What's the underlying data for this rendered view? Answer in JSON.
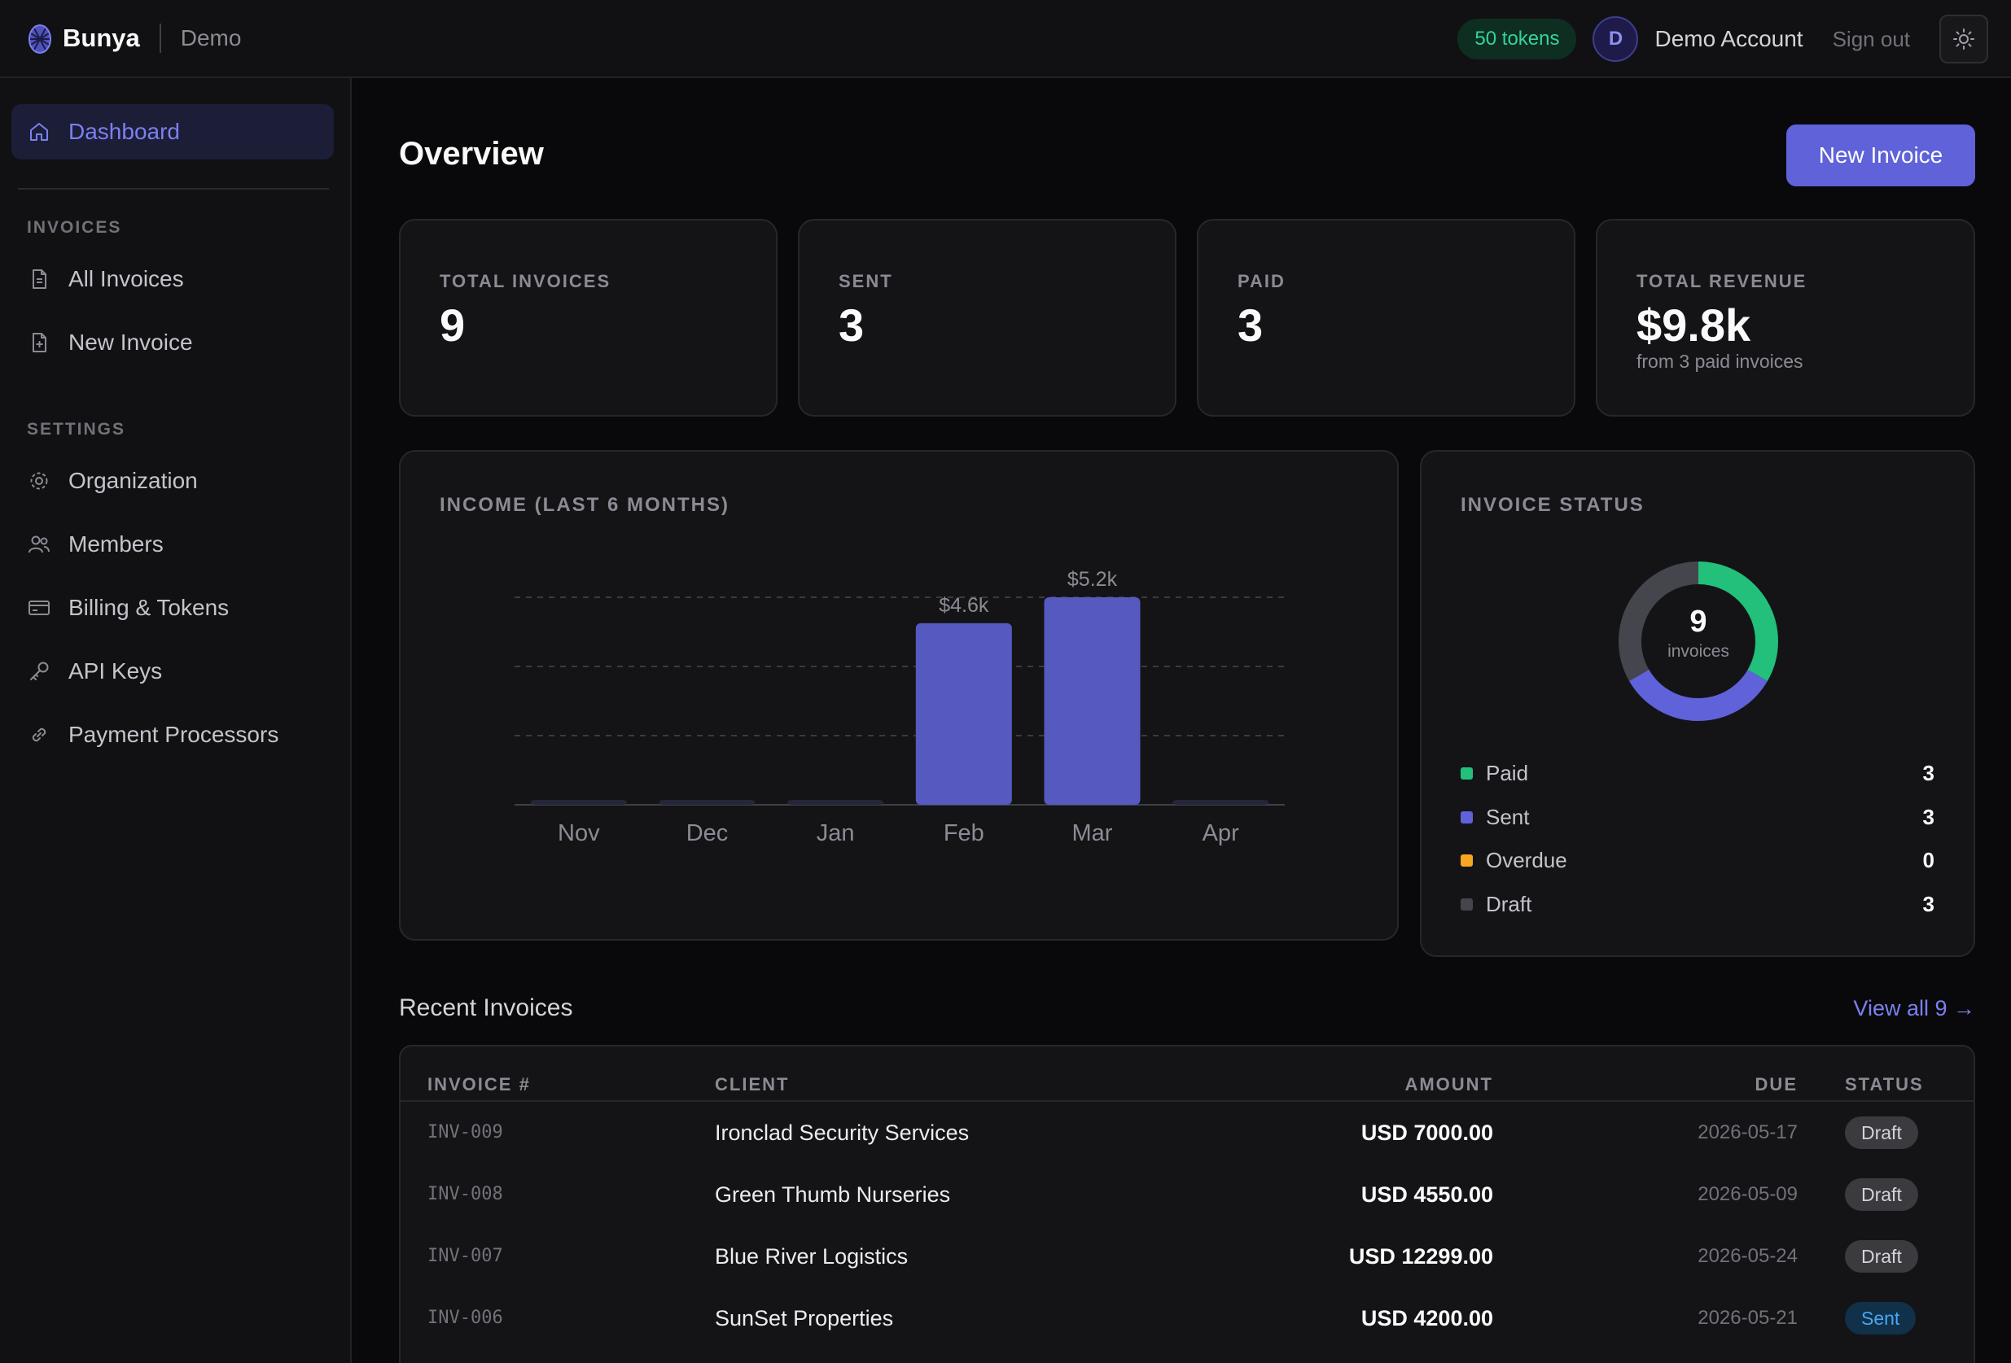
{
  "header": {
    "brand": "Bunya",
    "environment": "Demo",
    "tokens": "50 tokens",
    "avatar_initial": "D",
    "account_name": "Demo Account",
    "sign_out": "Sign out",
    "theme_icon": "sun-icon"
  },
  "sidebar": {
    "dashboard": "Dashboard",
    "invoices_section": "INVOICES",
    "all_invoices": "All Invoices",
    "new_invoice": "New Invoice",
    "settings_section": "SETTINGS",
    "organization": "Organization",
    "members": "Members",
    "billing": "Billing & Tokens",
    "api_keys": "API Keys",
    "payment_processors": "Payment Processors"
  },
  "main": {
    "title": "Overview",
    "new_invoice_button": "New Invoice",
    "stats": [
      {
        "label": "TOTAL INVOICES",
        "value": "9",
        "sub": ""
      },
      {
        "label": "SENT",
        "value": "3",
        "sub": ""
      },
      {
        "label": "PAID",
        "value": "3",
        "sub": ""
      },
      {
        "label": "TOTAL REVENUE",
        "value": "$9.8k",
        "sub": "from 3 paid invoices"
      }
    ]
  },
  "chart_data": {
    "type": "bar",
    "title": "INCOME (LAST 6 MONTHS)",
    "categories": [
      "Nov",
      "Dec",
      "Jan",
      "Feb",
      "Mar",
      "Apr"
    ],
    "values": [
      0,
      0,
      0,
      4550,
      5200,
      0
    ],
    "data_labels": [
      "",
      "",
      "",
      "$4.6k",
      "$5.2k",
      ""
    ],
    "ylim": [
      0,
      5200
    ],
    "grid": true,
    "bar_color": "#5659c0"
  },
  "status": {
    "title": "INVOICE STATUS",
    "total": "9",
    "total_label": "invoices",
    "items": [
      {
        "name": "Paid",
        "count": "3",
        "color": "#22c07a"
      },
      {
        "name": "Sent",
        "count": "3",
        "color": "#5f62d8"
      },
      {
        "name": "Overdue",
        "count": "0",
        "color": "#f5a623"
      },
      {
        "name": "Draft",
        "count": "3",
        "color": "#45454d"
      }
    ]
  },
  "recent": {
    "title": "Recent Invoices",
    "view_all": "View all 9 →",
    "columns": [
      "INVOICE #",
      "CLIENT",
      "AMOUNT",
      "DUE",
      "STATUS"
    ],
    "rows": [
      {
        "number": "INV-009",
        "client": "Ironclad Security Services",
        "amount": "USD 7000.00",
        "due": "2026-05-17",
        "status": "Draft"
      },
      {
        "number": "INV-008",
        "client": "Green Thumb Nurseries",
        "amount": "USD 4550.00",
        "due": "2026-05-09",
        "status": "Draft"
      },
      {
        "number": "INV-007",
        "client": "Blue River Logistics",
        "amount": "USD 12299.00",
        "due": "2026-05-24",
        "status": "Draft"
      },
      {
        "number": "INV-006",
        "client": "SunSet Properties",
        "amount": "USD 4200.00",
        "due": "2026-05-21",
        "status": "Sent"
      }
    ]
  }
}
